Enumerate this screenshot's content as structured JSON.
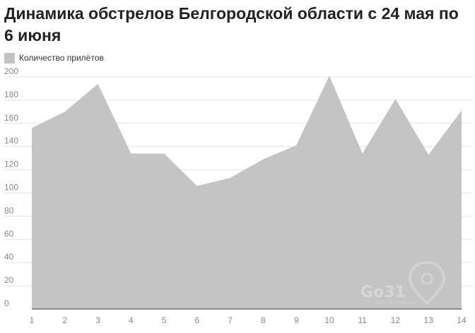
{
  "chart_data": {
    "type": "area",
    "title": "Динамика обстрелов Белгородской области с 24 мая по 6 июня",
    "series": [
      {
        "name": "Количество прилётов",
        "color": "#c4c4c4",
        "values": [
          156,
          170,
          194,
          134,
          134,
          106,
          113,
          129,
          141,
          201,
          134,
          181,
          133,
          171
        ]
      }
    ],
    "x": [
      1,
      2,
      3,
      4,
      5,
      6,
      7,
      8,
      9,
      10,
      11,
      12,
      13,
      14
    ],
    "ylim": [
      0,
      200
    ],
    "yticks": [
      0,
      20,
      40,
      60,
      80,
      100,
      120,
      140,
      160,
      180,
      200
    ],
    "grid": true,
    "legend": "top-left"
  },
  "watermark": {
    "text": "Go31",
    "subtext": "Сайт Белгорода",
    "icon": "map-pin-icon"
  }
}
